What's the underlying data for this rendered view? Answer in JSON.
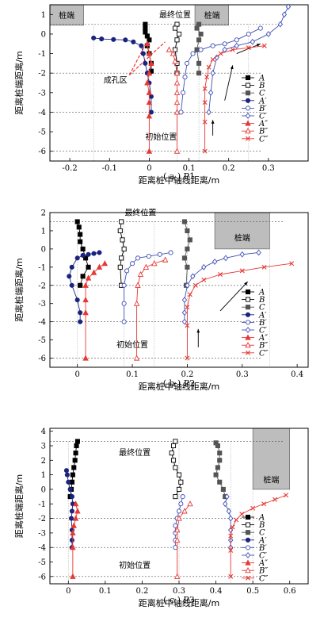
{
  "chart_data": [
    {
      "type": "scatter",
      "caption": "( a ) P1",
      "xlabel": "距离桩中轴线距离/m",
      "ylabel": "距离桩端距离/m",
      "xlim": [
        -0.25,
        0.4
      ],
      "ylim": [
        -6.5,
        1.5
      ],
      "xticks": [
        -0.2,
        -0.1,
        0.0,
        0.1,
        0.2,
        0.3
      ],
      "yticks": [
        1,
        0,
        -1,
        -2,
        -3,
        -4,
        -5,
        -6
      ],
      "xtick_labels": [
        "-0.2",
        "-0.1",
        "0",
        "0.1",
        "0.2",
        "0.3"
      ],
      "ytick_labels": [
        "1",
        "0",
        "-1",
        "-2",
        "-3",
        "-4",
        "-5",
        "-6"
      ],
      "pile_label": "桩端",
      "annotations": {
        "final": "最终位置",
        "initial": "初始位置",
        "hole": "成孔区"
      },
      "legend_position": "right",
      "series": [
        {
          "name": "A",
          "color": "#000000",
          "marker": "square",
          "fill": true,
          "x": [
            -0.01,
            -0.01,
            -0.01,
            -0.005,
            0.0,
            -0.005,
            0.0,
            0.005,
            0.005,
            0.0
          ],
          "y": [
            0.5,
            0.3,
            0.1,
            -0.1,
            -0.3,
            -0.6,
            -1.0,
            -1.5,
            -1.9,
            -2.0
          ]
        },
        {
          "name": "B",
          "color": "#000000",
          "marker": "square",
          "fill": false,
          "x": [
            0.07,
            0.065,
            0.075,
            0.07,
            0.065,
            0.07,
            0.07
          ],
          "y": [
            0.5,
            0.3,
            0.0,
            -0.3,
            -0.8,
            -1.5,
            -2.0
          ]
        },
        {
          "name": "C",
          "color": "#555555",
          "marker": "square",
          "fill": true,
          "x": [
            0.125,
            0.12,
            0.13,
            0.125,
            0.12,
            0.125,
            0.125
          ],
          "y": [
            0.5,
            0.3,
            0.0,
            -0.3,
            -0.8,
            -1.5,
            -2.0
          ]
        },
        {
          "name": "A′",
          "color": "#1a237e",
          "marker": "circle",
          "fill": true,
          "x": [
            -0.14,
            -0.12,
            -0.09,
            -0.06,
            -0.04,
            -0.02,
            -0.015,
            -0.01,
            -0.005,
            0.0,
            0.005,
            0.005
          ],
          "y": [
            -0.2,
            -0.25,
            -0.28,
            -0.3,
            -0.4,
            -0.6,
            -1.0,
            -1.5,
            -2.0,
            -2.5,
            -3.2,
            -4.0
          ]
        },
        {
          "name": "B′",
          "color": "#3f51b5",
          "marker": "circle",
          "fill": false,
          "x": [
            0.28,
            0.25,
            0.22,
            0.19,
            0.16,
            0.13,
            0.11,
            0.095,
            0.09,
            0.085,
            0.08
          ],
          "y": [
            0.3,
            0.0,
            -0.3,
            -0.5,
            -0.6,
            -0.8,
            -1.0,
            -1.5,
            -2.2,
            -3.0,
            -4.0
          ]
        },
        {
          "name": "C′",
          "color": "#3f51b5",
          "marker": "diamond",
          "fill": false,
          "x": [
            0.35,
            0.34,
            0.33,
            0.3,
            0.26,
            0.22,
            0.19,
            0.17,
            0.16,
            0.155,
            0.15
          ],
          "y": [
            1.4,
            1.0,
            0.5,
            0.0,
            -0.4,
            -0.6,
            -0.8,
            -1.2,
            -2.0,
            -3.0,
            -4.0
          ]
        },
        {
          "name": "A″",
          "color": "#e53935",
          "marker": "triangle",
          "fill": true,
          "x": [
            -0.005,
            0.0,
            0.005,
            0.0,
            -0.005,
            0.0,
            0.0,
            0.0,
            0.0
          ],
          "y": [
            -0.5,
            -1.0,
            -1.5,
            -2.0,
            -2.5,
            -3.0,
            -3.5,
            -4.2,
            -6.0
          ]
        },
        {
          "name": "B″",
          "color": "#e53935",
          "marker": "triangle",
          "fill": false,
          "x": [
            0.05,
            0.06,
            0.065,
            0.07,
            0.07,
            0.07,
            0.07,
            0.07,
            0.07
          ],
          "y": [
            -0.8,
            -1.0,
            -1.4,
            -2.0,
            -2.5,
            -3.0,
            -3.5,
            -4.0,
            -6.0
          ]
        },
        {
          "name": "C″",
          "color": "#e53935",
          "marker": "cross",
          "fill": false,
          "x": [
            0.29,
            0.25,
            0.21,
            0.18,
            0.16,
            0.15,
            0.145,
            0.14,
            0.14,
            0.14,
            0.14
          ],
          "y": [
            -0.6,
            -0.7,
            -0.8,
            -1.0,
            -1.3,
            -1.7,
            -2.2,
            -2.8,
            -3.5,
            -4.5,
            -6.0
          ]
        }
      ]
    },
    {
      "type": "scatter",
      "caption": "( b ) P2",
      "xlabel": "距离桩中轴线距离/m",
      "ylabel": "距离桩端距离/m",
      "xlim": [
        -0.05,
        0.42
      ],
      "ylim": [
        -6.5,
        2.0
      ],
      "xticks": [
        0.0,
        0.1,
        0.2,
        0.3,
        0.4
      ],
      "yticks": [
        2,
        1,
        0,
        -1,
        -2,
        -3,
        -4,
        -5,
        -6
      ],
      "xtick_labels": [
        "0",
        "0.1",
        "0.2",
        "0.3",
        "0.4"
      ],
      "ytick_labels": [
        "2",
        "1",
        "0",
        "-1",
        "-2",
        "-3",
        "-4",
        "-5",
        "-6"
      ],
      "pile_label": "桩端",
      "annotations": {
        "final": "最终位置",
        "initial": "初始位置"
      },
      "legend_position": "right",
      "series": [
        {
          "name": "A",
          "color": "#000000",
          "marker": "square",
          "fill": true,
          "x": [
            0.0,
            0.003,
            0.005,
            0.005,
            0.01,
            0.015,
            0.02,
            0.01,
            0.005
          ],
          "y": [
            1.5,
            1.2,
            0.8,
            0.4,
            0.0,
            -0.5,
            -1.0,
            -1.5,
            -2.0
          ]
        },
        {
          "name": "B",
          "color": "#000000",
          "marker": "square",
          "fill": false,
          "x": [
            0.08,
            0.078,
            0.082,
            0.085,
            0.08,
            0.078,
            0.08
          ],
          "y": [
            1.5,
            1.0,
            0.5,
            0.0,
            -0.5,
            -1.0,
            -2.0
          ]
        },
        {
          "name": "C",
          "color": "#555555",
          "marker": "square",
          "fill": true,
          "x": [
            0.195,
            0.2,
            0.205,
            0.2,
            0.195,
            0.2,
            0.198
          ],
          "y": [
            1.5,
            1.0,
            0.5,
            0.0,
            -0.5,
            -1.0,
            -2.0
          ]
        },
        {
          "name": "A′",
          "color": "#1a237e",
          "marker": "circle",
          "fill": true,
          "x": [
            0.04,
            0.03,
            0.02,
            0.01,
            0.0,
            -0.01,
            -0.015,
            -0.01,
            0.0,
            0.005,
            0.005
          ],
          "y": [
            -0.2,
            -0.25,
            -0.3,
            -0.35,
            -0.5,
            -1.0,
            -1.5,
            -2.0,
            -2.8,
            -3.5,
            -4.0
          ]
        },
        {
          "name": "B′",
          "color": "#3f51b5",
          "marker": "circle",
          "fill": false,
          "x": [
            0.17,
            0.15,
            0.13,
            0.11,
            0.1,
            0.09,
            0.085,
            0.085,
            0.085
          ],
          "y": [
            -0.2,
            -0.3,
            -0.4,
            -0.5,
            -0.8,
            -1.2,
            -2.0,
            -3.0,
            -4.0
          ]
        },
        {
          "name": "C′",
          "color": "#3f51b5",
          "marker": "diamond",
          "fill": false,
          "x": [
            0.33,
            0.3,
            0.27,
            0.25,
            0.23,
            0.21,
            0.2,
            0.195,
            0.195,
            0.195
          ],
          "y": [
            -0.2,
            -0.3,
            -0.5,
            -0.7,
            -1.0,
            -1.5,
            -2.0,
            -2.8,
            -3.5,
            -4.0
          ]
        },
        {
          "name": "A″",
          "color": "#e53935",
          "marker": "triangle",
          "fill": true,
          "x": [
            0.05,
            0.04,
            0.03,
            0.02,
            0.015,
            0.015,
            0.015,
            0.015
          ],
          "y": [
            -0.8,
            -1.0,
            -1.3,
            -1.6,
            -2.0,
            -2.8,
            -3.5,
            -6.0
          ]
        },
        {
          "name": "B″",
          "color": "#e53935",
          "marker": "triangle",
          "fill": false,
          "x": [
            0.16,
            0.14,
            0.125,
            0.115,
            0.11,
            0.108,
            0.108
          ],
          "y": [
            -0.6,
            -0.8,
            -1.0,
            -1.4,
            -2.0,
            -3.0,
            -6.0
          ]
        },
        {
          "name": "C″",
          "color": "#e53935",
          "marker": "cross",
          "fill": false,
          "x": [
            0.39,
            0.34,
            0.3,
            0.26,
            0.23,
            0.215,
            0.205,
            0.2,
            0.2,
            0.2
          ],
          "y": [
            -0.8,
            -1.0,
            -1.2,
            -1.4,
            -1.7,
            -2.0,
            -2.5,
            -3.2,
            -4.2,
            -6.0
          ]
        }
      ]
    },
    {
      "type": "scatter",
      "caption": "( c ) P3",
      "xlabel": "距离桩中轴线距离/m",
      "ylabel": "距离桩端距离/m",
      "xlim": [
        -0.05,
        0.65
      ],
      "ylim": [
        -6.5,
        4.2
      ],
      "xticks": [
        0.0,
        0.1,
        0.2,
        0.3,
        0.4,
        0.5,
        0.6
      ],
      "yticks": [
        4,
        3,
        2,
        1,
        0,
        -1,
        -2,
        -3,
        -4,
        -5,
        -6
      ],
      "xtick_labels": [
        "0",
        "0.1",
        "0.2",
        "0.3",
        "0.4",
        "0.5",
        "0.6"
      ],
      "ytick_labels": [
        "4",
        "3",
        "2",
        "1",
        "0",
        "-1",
        "-2",
        "-3",
        "-4",
        "-5",
        "-6"
      ],
      "pile_label": "桩端",
      "annotations": {
        "final": "最终位置",
        "initial": "初始位置"
      },
      "legend_position": "right",
      "series": [
        {
          "name": "A",
          "color": "#000000",
          "marker": "square",
          "fill": true,
          "x": [
            0.025,
            0.022,
            0.02,
            0.018,
            0.015,
            0.012,
            0.01,
            0.008,
            0.005
          ],
          "y": [
            3.3,
            3.0,
            2.5,
            2.0,
            1.5,
            1.0,
            0.5,
            0.0,
            -0.5
          ]
        },
        {
          "name": "B",
          "color": "#000000",
          "marker": "square",
          "fill": false,
          "x": [
            0.29,
            0.285,
            0.28,
            0.285,
            0.29,
            0.3,
            0.305,
            0.3,
            0.29
          ],
          "y": [
            3.3,
            3.0,
            2.5,
            2.0,
            1.5,
            1.0,
            0.5,
            0.0,
            -0.5
          ]
        },
        {
          "name": "C",
          "color": "#555555",
          "marker": "square",
          "fill": true,
          "x": [
            0.4,
            0.405,
            0.41,
            0.41,
            0.405,
            0.4,
            0.41,
            0.42,
            0.425
          ],
          "y": [
            3.2,
            3.0,
            2.5,
            2.0,
            1.5,
            1.0,
            0.5,
            0.0,
            -0.5
          ]
        },
        {
          "name": "A′",
          "color": "#1a237e",
          "marker": "circle",
          "fill": true,
          "x": [
            -0.005,
            -0.003,
            0.0,
            0.005,
            0.01,
            0.012,
            0.01,
            0.008,
            0.01,
            0.01,
            0.01
          ],
          "y": [
            1.3,
            1.0,
            0.5,
            0.0,
            -0.5,
            -1.0,
            -1.5,
            -2.0,
            -2.8,
            -3.5,
            -4.0
          ]
        },
        {
          "name": "B′",
          "color": "#3f51b5",
          "marker": "circle",
          "fill": false,
          "x": [
            0.31,
            0.305,
            0.3,
            0.295,
            0.29,
            0.29,
            0.29,
            0.29
          ],
          "y": [
            -0.5,
            -1.0,
            -1.5,
            -2.0,
            -2.5,
            -3.0,
            -3.5,
            -4.0
          ]
        },
        {
          "name": "C′",
          "color": "#3f51b5",
          "marker": "diamond",
          "fill": false,
          "x": [
            0.43,
            0.425,
            0.435,
            0.44,
            0.44,
            0.44,
            0.44
          ],
          "y": [
            -0.5,
            -1.0,
            -1.5,
            -2.0,
            -2.8,
            -3.5,
            -4.0
          ]
        },
        {
          "name": "A″",
          "color": "#e53935",
          "marker": "triangle",
          "fill": true,
          "x": [
            0.02,
            0.025,
            0.02,
            0.015,
            0.012,
            0.012,
            0.012
          ],
          "y": [
            -1.0,
            -1.5,
            -2.0,
            -2.5,
            -3.0,
            -4.0,
            -6.0
          ]
        },
        {
          "name": "B″",
          "color": "#e53935",
          "marker": "triangle",
          "fill": false,
          "x": [
            0.33,
            0.315,
            0.3,
            0.295,
            0.295,
            0.295
          ],
          "y": [
            -1.0,
            -1.5,
            -2.0,
            -2.8,
            -3.5,
            -6.0
          ]
        },
        {
          "name": "C″",
          "color": "#e53935",
          "marker": "cross",
          "fill": false,
          "x": [
            0.59,
            0.56,
            0.53,
            0.5,
            0.47,
            0.455,
            0.445,
            0.44,
            0.44,
            0.44
          ],
          "y": [
            -0.4,
            -0.7,
            -1.0,
            -1.3,
            -1.7,
            -2.1,
            -2.6,
            -3.2,
            -4.2,
            -6.0
          ]
        }
      ]
    }
  ]
}
